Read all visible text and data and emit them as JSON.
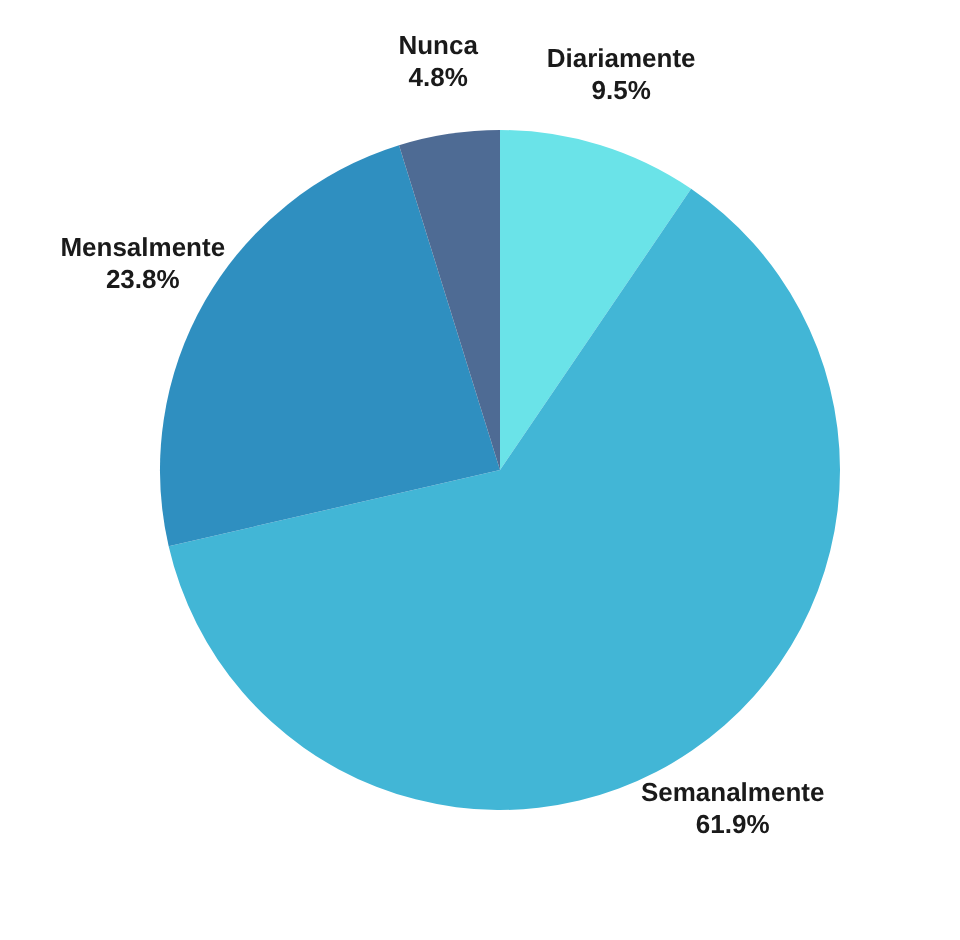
{
  "chart_data": {
    "type": "pie",
    "categories": [
      "Diariamente",
      "Semanalmente",
      "Mensalmente",
      "Nunca"
    ],
    "values": [
      9.5,
      61.9,
      23.8,
      4.8
    ],
    "value_labels": [
      "9.5%",
      "61.9%",
      "23.8%",
      "4.8%"
    ],
    "colors": [
      "#6ae3e8",
      "#42b6d6",
      "#2f8fc0",
      "#4e6b94"
    ]
  }
}
